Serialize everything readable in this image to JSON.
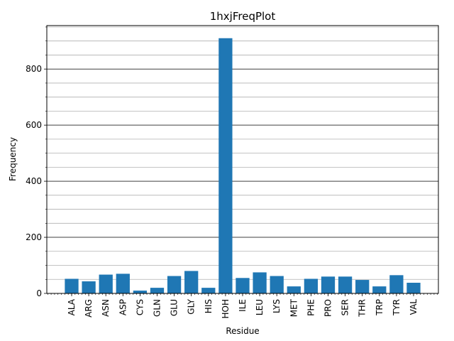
{
  "chart_data": {
    "type": "bar",
    "title": "1hxjFreqPlot",
    "xlabel": "Residue",
    "ylabel": "Frequency",
    "categories": [
      "ALA",
      "ARG",
      "ASN",
      "ASP",
      "CYS",
      "GLN",
      "GLU",
      "GLY",
      "HIS",
      "HOH",
      "ILE",
      "LEU",
      "LYS",
      "MET",
      "PHE",
      "PRO",
      "SER",
      "THR",
      "TRP",
      "TYR",
      "VAL"
    ],
    "values": [
      52,
      43,
      67,
      70,
      10,
      20,
      62,
      80,
      20,
      910,
      55,
      75,
      62,
      25,
      52,
      60,
      60,
      48,
      25,
      65,
      38
    ],
    "ylim": [
      0,
      955
    ],
    "yticks": [
      0,
      200,
      400,
      600,
      800
    ],
    "grid": "y-major-and-minor",
    "bar_color": "#1f77b4"
  }
}
